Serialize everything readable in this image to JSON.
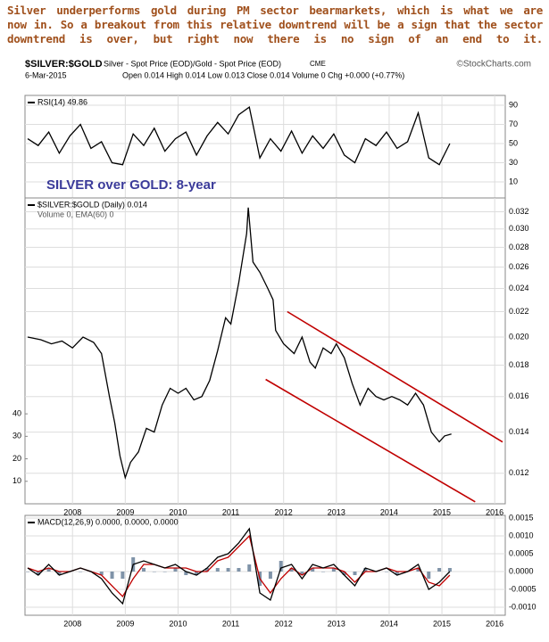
{
  "caption": [
    "Silver underperforms gold during PM sector bearmarkets, which is what we are",
    "now in. So a breakout from this relative downtrend will be a sign that the sector",
    "downtrend is over, but right now there is no sign of an end to it."
  ],
  "header": {
    "symbol": "$SILVER:$GOLD",
    "description": "Silver - Spot Price (EOD)/Gold - Spot Price (EOD)",
    "exchange": "CME",
    "source": "©StockCharts.com",
    "date": "6-Mar-2015",
    "quote": "Open 0.014 High 0.014 Low 0.013 Close 0.014 Volume 0 Chg +0.000 (+0.77%)"
  },
  "chart_data": [
    {
      "type": "line",
      "legend_text": "RSI(14) 49.86",
      "annotation": "SILVER over GOLD: 8-year",
      "xlim": [
        2007.1,
        2016.2
      ],
      "xticks": [
        2008,
        2009,
        2010,
        2011,
        2012,
        2013,
        2014,
        2015,
        2016
      ],
      "xtick_labels": false,
      "ylim": [
        -6.7,
        100.2
      ],
      "yticks": [
        10,
        30,
        50,
        70,
        90
      ],
      "grid": true,
      "x": [
        2007.15,
        2007.35,
        2007.55,
        2007.75,
        2007.95,
        2008.15,
        2008.35,
        2008.55,
        2008.75,
        2008.95,
        2009.15,
        2009.35,
        2009.55,
        2009.75,
        2009.95,
        2010.15,
        2010.35,
        2010.55,
        2010.75,
        2010.95,
        2011.15,
        2011.35,
        2011.55,
        2011.75,
        2011.95,
        2012.15,
        2012.35,
        2012.55,
        2012.75,
        2012.95,
        2013.15,
        2013.35,
        2013.55,
        2013.75,
        2013.95,
        2014.15,
        2014.35,
        2014.55,
        2014.75,
        2014.95,
        2015.15
      ],
      "series": [
        {
          "color": "#000000",
          "values": [
            55,
            48,
            62,
            40,
            58,
            70,
            45,
            52,
            30,
            28,
            60,
            48,
            66,
            42,
            55,
            62,
            38,
            58,
            72,
            60,
            80,
            88,
            35,
            55,
            42,
            63,
            40,
            58,
            45,
            60,
            38,
            30,
            55,
            48,
            62,
            45,
            52,
            82,
            35,
            28,
            50
          ]
        }
      ]
    },
    {
      "type": "line",
      "legend_text": "$SILVER:$GOLD (Daily) 0.014",
      "volume_text": "Volume 0, EMA(60) 0",
      "log_scale": true,
      "xlim": [
        2007.1,
        2016.2
      ],
      "xticks": [
        2008,
        2009,
        2010,
        2011,
        2012,
        2013,
        2014,
        2015,
        2016
      ],
      "ylim": [
        0.0107,
        0.0337
      ],
      "yticks": [
        0.012,
        0.014,
        0.016,
        0.018,
        {
          "value": 0.02,
          "label": "0.020"
        },
        0.022,
        0.024,
        0.026,
        0.028,
        {
          "value": 0.03,
          "label": "0.030"
        },
        0.032
      ],
      "y2lim": [
        0,
        136
      ],
      "y2ticks": [
        10,
        20,
        30,
        40
      ],
      "grid": true,
      "x": [
        2007.15,
        2007.4,
        2007.6,
        2007.8,
        2008.0,
        2008.2,
        2008.4,
        2008.55,
        2008.7,
        2008.8,
        2008.9,
        2009.0,
        2009.1,
        2009.25,
        2009.4,
        2009.55,
        2009.7,
        2009.85,
        2010.0,
        2010.15,
        2010.3,
        2010.45,
        2010.6,
        2010.75,
        2010.9,
        2011.0,
        2011.15,
        2011.3,
        2011.33,
        2011.42,
        2011.55,
        2011.7,
        2011.8,
        2011.85,
        2012.0,
        2012.2,
        2012.35,
        2012.5,
        2012.6,
        2012.75,
        2012.9,
        2013.0,
        2013.15,
        2013.3,
        2013.45,
        2013.6,
        2013.75,
        2013.9,
        2014.05,
        2014.2,
        2014.35,
        2014.5,
        2014.65,
        2014.8,
        2014.95,
        2015.05,
        2015.18
      ],
      "series": [
        {
          "color": "#000000",
          "values": [
            0.02,
            0.0198,
            0.0195,
            0.0197,
            0.0192,
            0.02,
            0.0196,
            0.0188,
            0.016,
            0.0145,
            0.0128,
            0.0118,
            0.0125,
            0.013,
            0.0142,
            0.014,
            0.0155,
            0.0165,
            0.0162,
            0.0165,
            0.0158,
            0.016,
            0.017,
            0.019,
            0.0215,
            0.021,
            0.0245,
            0.0295,
            0.0325,
            0.0265,
            0.0255,
            0.024,
            0.023,
            0.0205,
            0.0195,
            0.0188,
            0.02,
            0.0182,
            0.0178,
            0.0192,
            0.0188,
            0.0195,
            0.0185,
            0.0168,
            0.0155,
            0.0165,
            0.016,
            0.0158,
            0.016,
            0.0158,
            0.0155,
            0.0162,
            0.0155,
            0.014,
            0.0135,
            0.0138,
            0.0139
          ]
        }
      ],
      "trendlines": [
        {
          "color": "#c00000",
          "x": [
            2012.07,
            2016.15
          ],
          "values": [
            0.022,
            0.01349
          ]
        },
        {
          "color": "#c00000",
          "x": [
            2011.66,
            2015.63
          ],
          "values": [
            0.01706,
            0.01078
          ]
        }
      ]
    },
    {
      "type": "line",
      "legend_text": "MACD(12,26,9) 0.0000, 0.0000, 0.0000",
      "xlim": [
        2007.1,
        2016.2
      ],
      "xticks": [
        2008,
        2009,
        2010,
        2011,
        2012,
        2013,
        2014,
        2015,
        2016
      ],
      "ylim": [
        -0.001225,
        0.001575
      ],
      "yticks": [
        {
          "value": -0.001,
          "label": "-0.0010"
        },
        -0.0005,
        {
          "value": 0,
          "label": "0.0000"
        },
        0.0005,
        {
          "value": 0.001,
          "label": "0.0010"
        },
        0.0015
      ],
      "grid": true,
      "x": [
        2007.15,
        2007.35,
        2007.55,
        2007.75,
        2007.95,
        2008.15,
        2008.35,
        2008.55,
        2008.75,
        2008.95,
        2009.15,
        2009.35,
        2009.55,
        2009.75,
        2009.95,
        2010.15,
        2010.35,
        2010.55,
        2010.75,
        2010.95,
        2011.15,
        2011.35,
        2011.55,
        2011.75,
        2011.95,
        2012.15,
        2012.35,
        2012.55,
        2012.75,
        2012.95,
        2013.15,
        2013.35,
        2013.55,
        2013.75,
        2013.95,
        2014.15,
        2014.35,
        2014.55,
        2014.75,
        2014.95,
        2015.15
      ],
      "series": [
        {
          "color": "#7f93a8",
          "kind": "bar",
          "values": [
            0,
            -0.0001,
            0.0001,
            -0.0001,
            0,
            0,
            0,
            -0.0001,
            -0.0002,
            -0.0002,
            0.0004,
            0.0001,
            0,
            0,
            0.0001,
            -0.0001,
            -0.0001,
            0.0001,
            0.0001,
            0.0001,
            0.0001,
            0.0002,
            -0.0004,
            -0.0002,
            0.0003,
            0.0001,
            -0.0001,
            0.0001,
            0,
            0.0001,
            -0.0001,
            -0.0001,
            0.0001,
            0,
            0,
            -0.0001,
            0,
            0.0001,
            -0.0002,
            0.0001,
            0.0001
          ]
        },
        {
          "color": "#c00000",
          "values": [
            0.0001,
            0,
            0.0001,
            0,
            0,
            0.0001,
            0,
            -0.0001,
            -0.0004,
            -0.0007,
            -0.0002,
            0.0002,
            0.0002,
            0.0001,
            0.0001,
            0.0001,
            0,
            0,
            0.0003,
            0.0004,
            0.0007,
            0.001,
            -0.0002,
            -0.0006,
            -0.0002,
            0.0001,
            -0.0001,
            0.0001,
            0.0001,
            0.0001,
            0,
            -0.0003,
            0,
            0,
            0.0001,
            0,
            0,
            0.0001,
            -0.0003,
            -0.0004,
            -0.0001
          ]
        },
        {
          "color": "#000000",
          "values": [
            0.0001,
            -0.0001,
            0.0002,
            -0.0001,
            0,
            0.0001,
            0,
            -0.0002,
            -0.0006,
            -0.0009,
            0.0002,
            0.0003,
            0.0002,
            0.0001,
            0.0002,
            0,
            -0.0001,
            0.0001,
            0.0004,
            0.0005,
            0.0008,
            0.0012,
            -0.0006,
            -0.0008,
            0.0001,
            0.0002,
            -0.0002,
            0.0002,
            0.0001,
            0.0002,
            -0.0001,
            -0.0004,
            0.0001,
            0,
            0.0001,
            -0.0001,
            0,
            0.0002,
            -0.0005,
            -0.0003,
            0
          ]
        }
      ]
    }
  ]
}
